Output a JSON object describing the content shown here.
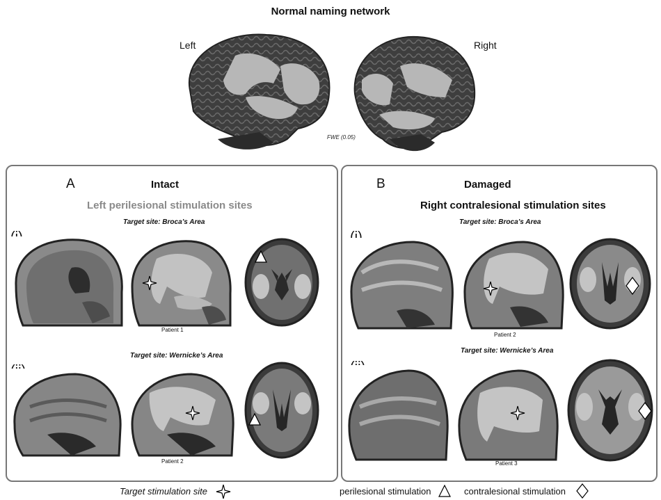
{
  "figure": {
    "top_title": "Normal naming network",
    "left_hemisphere_label": "Left",
    "right_hemisphere_label": "Right",
    "threshold_label": "FWE (0.05)"
  },
  "panel_a": {
    "letter": "A",
    "heading": "Intact",
    "subtitle": "Left perilesional stimulation sites",
    "row1": {
      "roman": "(i)",
      "target": "Target site: Broca’s Area",
      "patient": "Patient 1"
    },
    "row2": {
      "roman": "(ii)",
      "target": "Target site: Wernicke’s Area",
      "patient": "Patient 2"
    }
  },
  "panel_b": {
    "letter": "B",
    "heading": "Damaged",
    "subtitle": "Right contralesional stimulation sites",
    "row1": {
      "roman": "(i)",
      "target": "Target site: Broca’s Area",
      "patient": "Patient 2"
    },
    "row2": {
      "roman": "(ii)",
      "target": "Target site: Wernicke’s Area",
      "patient": "Patient 3"
    }
  },
  "legend": {
    "target_site": "Target stimulation site",
    "perilesional": "perilesional stimulation",
    "contralesional": "contralesional stimulation"
  },
  "colors": {
    "panel_border": "#777777",
    "subtitle_gray": "#8a8a8a",
    "brain_dark": "#3a3a3a",
    "activation": "#b9b9b9"
  }
}
